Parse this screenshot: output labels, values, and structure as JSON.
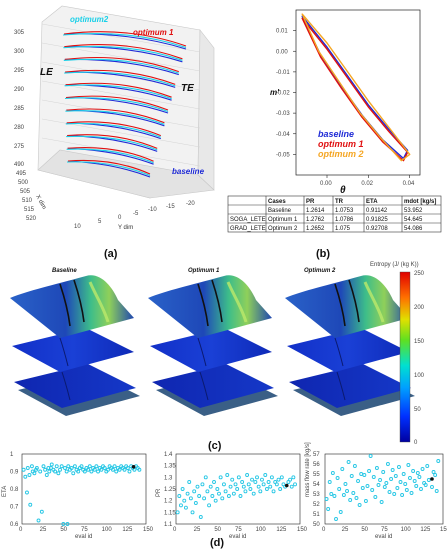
{
  "colors": {
    "baseline": "#1f2bd6",
    "optimum1": "#e01010",
    "optimum2": "#f5a623",
    "cyan": "#1ad0e8",
    "cyan_mark": "#27c7e5"
  },
  "panel_a": {
    "label": "(a)",
    "legend": [
      "optimum2",
      "optimum 1",
      "baseline"
    ],
    "le": "LE",
    "te": "TE",
    "z_ticks": [
      "305",
      "300",
      "295",
      "290",
      "285",
      "280",
      "275"
    ],
    "x_ticks": [
      "490",
      "495",
      "500",
      "505",
      "510",
      "515",
      "520"
    ],
    "x_axis": "X dim",
    "y_ticks": [
      "10",
      "5",
      "0",
      "-5",
      "-10",
      "-15",
      "-20"
    ],
    "y_axis": "Y dim"
  },
  "panel_b": {
    "label": "(b)",
    "ylabel": "m'",
    "xlabel": "θ",
    "legend": [
      "baseline",
      "optimum 1",
      "optimum 2"
    ]
  },
  "table": {
    "headers": [
      "",
      "Cases",
      "PR",
      "TR",
      "ETA",
      "mdot [kg/s]"
    ],
    "rows": [
      [
        "",
        "Baseline",
        "1.2614",
        "1.0753",
        "0.91142",
        "53.952"
      ],
      [
        "SOGA_LETE",
        "Optimum 1",
        "1.2762",
        "1.0786",
        "0.91825",
        "54.645"
      ],
      [
        "GRAD_LETE",
        "Optimum 2",
        "1.2652",
        "1.075",
        "0.92708",
        "54.086"
      ]
    ]
  },
  "panel_c": {
    "label": "(c)",
    "titles": [
      "Baseline",
      "Optimum 1",
      "Optimum 2"
    ],
    "colorbar_title": "Entropy (J/ (kg K))",
    "colorbar_ticks": [
      "250",
      "200",
      "150",
      "100",
      "50",
      "0"
    ]
  },
  "panel_d": {
    "label": "(d)"
  },
  "chart_data": [
    {
      "type": "line",
      "xlabel": "θ",
      "ylabel": "m'",
      "xlim": [
        -0.015,
        0.045
      ],
      "ylim": [
        -0.06,
        0.02
      ],
      "x_ticks": [
        "0.00",
        "0.02",
        "0.04"
      ],
      "y_ticks": [
        "0.01",
        "0.00",
        "-0.01",
        "-0.02",
        "-0.03",
        "-0.04",
        "-0.05"
      ],
      "series": [
        {
          "name": "baseline",
          "upper": [
            [
              -0.012,
              0.017
            ],
            [
              0.0,
              0.002
            ],
            [
              0.01,
              -0.012
            ],
            [
              0.02,
              -0.026
            ],
            [
              0.03,
              -0.038
            ],
            [
              0.039,
              -0.048
            ]
          ],
          "lower": [
            [
              -0.012,
              0.017
            ],
            [
              -0.003,
              -0.002
            ],
            [
              0.007,
              -0.017
            ],
            [
              0.017,
              -0.031
            ],
            [
              0.027,
              -0.043
            ],
            [
              0.037,
              -0.052
            ],
            [
              0.039,
              -0.048
            ]
          ]
        },
        {
          "name": "optimum 1",
          "upper": [
            [
              -0.012,
              0.016
            ],
            [
              0.0,
              0.001
            ],
            [
              0.01,
              -0.013
            ],
            [
              0.02,
              -0.027
            ],
            [
              0.03,
              -0.039
            ],
            [
              0.039,
              -0.049
            ]
          ],
          "lower": [
            [
              -0.012,
              0.016
            ],
            [
              -0.003,
              -0.003
            ],
            [
              0.007,
              -0.018
            ],
            [
              0.017,
              -0.032
            ],
            [
              0.027,
              -0.044
            ],
            [
              0.037,
              -0.053
            ],
            [
              0.039,
              -0.049
            ]
          ]
        },
        {
          "name": "optimum 2",
          "upper": [
            [
              -0.012,
              0.018
            ],
            [
              0.0,
              0.004
            ],
            [
              0.01,
              -0.01
            ],
            [
              0.02,
              -0.024
            ],
            [
              0.03,
              -0.037
            ],
            [
              0.04,
              -0.05
            ]
          ],
          "lower": [
            [
              -0.012,
              0.018
            ],
            [
              -0.004,
              0.0
            ],
            [
              0.006,
              -0.015
            ],
            [
              0.016,
              -0.03
            ],
            [
              0.026,
              -0.042
            ],
            [
              0.036,
              -0.053
            ],
            [
              0.04,
              -0.05
            ]
          ]
        }
      ]
    },
    {
      "type": "scatter",
      "xlabel": "eval id",
      "ylabel": "ETA",
      "xlim": [
        0,
        150
      ],
      "ylim": [
        0.6,
        1.0
      ],
      "x_ticks": [
        0,
        25,
        50,
        75,
        100,
        125,
        150
      ],
      "y_ticks": [
        0.6,
        0.7,
        0.8,
        0.9,
        1.0
      ],
      "points": [
        [
          2,
          0.91
        ],
        [
          4,
          0.87
        ],
        [
          6,
          0.78
        ],
        [
          7,
          0.92
        ],
        [
          9,
          0.88
        ],
        [
          10,
          0.71
        ],
        [
          12,
          0.93
        ],
        [
          13,
          0.9
        ],
        [
          15,
          0.89
        ],
        [
          17,
          0.91
        ],
        [
          18,
          0.92
        ],
        [
          20,
          0.62
        ],
        [
          22,
          0.9
        ],
        [
          24,
          0.67
        ],
        [
          26,
          0.93
        ],
        [
          28,
          0.91
        ],
        [
          30,
          0.88
        ],
        [
          32,
          0.92
        ],
        [
          33,
          0.9
        ],
        [
          35,
          0.92
        ],
        [
          36,
          0.94
        ],
        [
          38,
          0.91
        ],
        [
          40,
          0.9
        ],
        [
          42,
          0.93
        ],
        [
          44,
          0.89
        ],
        [
          46,
          0.91
        ],
        [
          48,
          0.93
        ],
        [
          50,
          0.6
        ],
        [
          52,
          0.92
        ],
        [
          54,
          0.9
        ],
        [
          55,
          0.6
        ],
        [
          56,
          0.93
        ],
        [
          58,
          0.91
        ],
        [
          60,
          0.92
        ],
        [
          62,
          0.89
        ],
        [
          64,
          0.93
        ],
        [
          66,
          0.91
        ],
        [
          68,
          0.9
        ],
        [
          70,
          0.92
        ],
        [
          72,
          0.93
        ],
        [
          74,
          0.91
        ],
        [
          76,
          0.9
        ],
        [
          78,
          0.92
        ],
        [
          80,
          0.91
        ],
        [
          82,
          0.93
        ],
        [
          84,
          0.9
        ],
        [
          86,
          0.92
        ],
        [
          88,
          0.91
        ],
        [
          90,
          0.93
        ],
        [
          92,
          0.9
        ],
        [
          94,
          0.92
        ],
        [
          96,
          0.91
        ],
        [
          98,
          0.93
        ],
        [
          100,
          0.92
        ],
        [
          102,
          0.9
        ],
        [
          104,
          0.91
        ],
        [
          106,
          0.93
        ],
        [
          108,
          0.92
        ],
        [
          110,
          0.91
        ],
        [
          112,
          0.93
        ],
        [
          114,
          0.9
        ],
        [
          116,
          0.92
        ],
        [
          118,
          0.91
        ],
        [
          120,
          0.93
        ],
        [
          122,
          0.92
        ],
        [
          124,
          0.91
        ],
        [
          126,
          0.93
        ],
        [
          128,
          0.92
        ],
        [
          130,
          0.9
        ],
        [
          132,
          0.93
        ],
        [
          134,
          0.92
        ],
        [
          136,
          0.91
        ],
        [
          138,
          0.93
        ],
        [
          140,
          0.92
        ],
        [
          142,
          0.91
        ]
      ],
      "highlight": [
        135,
        0.927
      ]
    },
    {
      "type": "scatter",
      "xlabel": "eval id",
      "ylabel": "PR",
      "xlim": [
        0,
        150
      ],
      "ylim": [
        1.1,
        1.4
      ],
      "x_ticks": [
        0,
        25,
        50,
        75,
        100,
        125,
        150
      ],
      "y_ticks": [
        1.1,
        1.15,
        1.2,
        1.25,
        1.3,
        1.35,
        1.4
      ],
      "points": [
        [
          2,
          1.15
        ],
        [
          4,
          1.22
        ],
        [
          6,
          1.18
        ],
        [
          8,
          1.25
        ],
        [
          10,
          1.2
        ],
        [
          12,
          1.17
        ],
        [
          14,
          1.23
        ],
        [
          16,
          1.28
        ],
        [
          18,
          1.21
        ],
        [
          20,
          1.15
        ],
        [
          22,
          1.24
        ],
        [
          24,
          1.19
        ],
        [
          26,
          1.26
        ],
        [
          28,
          1.22
        ],
        [
          30,
          1.13
        ],
        [
          32,
          1.27
        ],
        [
          34,
          1.21
        ],
        [
          36,
          1.3
        ],
        [
          38,
          1.24
        ],
        [
          40,
          1.18
        ],
        [
          42,
          1.26
        ],
        [
          44,
          1.22
        ],
        [
          46,
          1.28
        ],
        [
          48,
          1.2
        ],
        [
          50,
          1.25
        ],
        [
          52,
          1.23
        ],
        [
          54,
          1.3
        ],
        [
          56,
          1.21
        ],
        [
          58,
          1.27
        ],
        [
          60,
          1.24
        ],
        [
          62,
          1.31
        ],
        [
          64,
          1.22
        ],
        [
          66,
          1.26
        ],
        [
          68,
          1.29
        ],
        [
          70,
          1.23
        ],
        [
          72,
          1.27
        ],
        [
          74,
          1.25
        ],
        [
          76,
          1.3
        ],
        [
          78,
          1.22
        ],
        [
          80,
          1.28
        ],
        [
          82,
          1.26
        ],
        [
          84,
          1.24
        ],
        [
          86,
          1.31
        ],
        [
          88,
          1.27
        ],
        [
          90,
          1.25
        ],
        [
          92,
          1.29
        ],
        [
          94,
          1.23
        ],
        [
          96,
          1.28
        ],
        [
          98,
          1.3
        ],
        [
          100,
          1.26
        ],
        [
          102,
          1.24
        ],
        [
          104,
          1.29
        ],
        [
          106,
          1.27
        ],
        [
          108,
          1.31
        ],
        [
          110,
          1.25
        ],
        [
          112,
          1.28
        ],
        [
          114,
          1.26
        ],
        [
          116,
          1.3
        ],
        [
          118,
          1.24
        ],
        [
          120,
          1.28
        ],
        [
          122,
          1.27
        ],
        [
          124,
          1.29
        ],
        [
          126,
          1.25
        ],
        [
          128,
          1.3
        ],
        [
          130,
          1.27
        ],
        [
          132,
          1.26
        ],
        [
          136,
          1.28
        ],
        [
          138,
          1.29
        ],
        [
          140,
          1.26
        ],
        [
          142,
          1.3
        ],
        [
          144,
          1.27
        ]
      ],
      "highlight": [
        134,
        1.265
      ]
    },
    {
      "type": "scatter",
      "xlabel": "eval id",
      "ylabel": "mass flow rate [kg/s]",
      "xlim": [
        0,
        150
      ],
      "ylim": [
        50,
        57
      ],
      "x_ticks": [
        0,
        25,
        50,
        75,
        100,
        125,
        150
      ],
      "y_ticks": [
        50,
        51,
        52,
        53,
        54,
        55,
        56,
        57
      ],
      "points": [
        [
          2,
          52.5
        ],
        [
          4,
          51.5
        ],
        [
          6,
          54.2
        ],
        [
          8,
          53.0
        ],
        [
          10,
          55.1
        ],
        [
          12,
          52.8
        ],
        [
          14,
          50.5
        ],
        [
          16,
          54.6
        ],
        [
          18,
          53.5
        ],
        [
          20,
          51.2
        ],
        [
          22,
          55.5
        ],
        [
          24,
          52.9
        ],
        [
          26,
          54.0
        ],
        [
          28,
          53.3
        ],
        [
          30,
          56.2
        ],
        [
          32,
          52.4
        ],
        [
          34,
          54.8
        ],
        [
          36,
          53.1
        ],
        [
          38,
          55.8
        ],
        [
          40,
          52.6
        ],
        [
          42,
          54.3
        ],
        [
          44,
          51.9
        ],
        [
          46,
          55.0
        ],
        [
          48,
          53.6
        ],
        [
          50,
          54.9
        ],
        [
          52,
          52.3
        ],
        [
          54,
          53.8
        ],
        [
          56,
          55.3
        ],
        [
          58,
          56.8
        ],
        [
          60,
          53.4
        ],
        [
          62,
          54.7
        ],
        [
          64,
          52.7
        ],
        [
          66,
          55.6
        ],
        [
          68,
          53.9
        ],
        [
          70,
          54.4
        ],
        [
          72,
          52.2
        ],
        [
          74,
          55.2
        ],
        [
          76,
          53.7
        ],
        [
          78,
          54.1
        ],
        [
          80,
          56.0
        ],
        [
          82,
          53.2
        ],
        [
          84,
          54.5
        ],
        [
          86,
          55.4
        ],
        [
          88,
          53.0
        ],
        [
          90,
          54.8
        ],
        [
          92,
          53.6
        ],
        [
          94,
          55.7
        ],
        [
          96,
          54.2
        ],
        [
          98,
          52.9
        ],
        [
          100,
          55.0
        ],
        [
          102,
          54.0
        ],
        [
          104,
          53.4
        ],
        [
          106,
          55.9
        ],
        [
          108,
          54.6
        ],
        [
          110,
          53.1
        ],
        [
          112,
          55.3
        ],
        [
          114,
          54.3
        ],
        [
          116,
          53.8
        ],
        [
          118,
          55.1
        ],
        [
          120,
          54.7
        ],
        [
          122,
          53.5
        ],
        [
          124,
          55.5
        ],
        [
          126,
          54.1
        ],
        [
          128,
          53.9
        ],
        [
          130,
          55.8
        ],
        [
          132,
          54.4
        ],
        [
          136,
          53.7
        ],
        [
          138,
          55.2
        ],
        [
          140,
          54.9
        ],
        [
          142,
          53.3
        ],
        [
          144,
          56.3
        ]
      ],
      "highlight": [
        136,
        54.5
      ]
    }
  ]
}
